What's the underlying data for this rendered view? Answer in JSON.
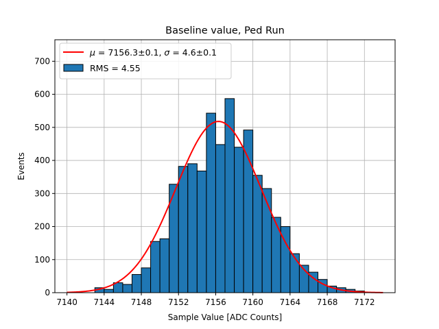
{
  "chart_data": {
    "type": "bar",
    "title": "Baseline value, Ped Run",
    "xlabel": "Sample Value [ADC Counts]",
    "ylabel": "Events",
    "xlim": [
      7138.7,
      7175.3
    ],
    "ylim": [
      0,
      765
    ],
    "xticks": [
      7140,
      7144,
      7148,
      7152,
      7156,
      7160,
      7164,
      7168,
      7172
    ],
    "yticks": [
      0,
      100,
      200,
      300,
      400,
      500,
      600,
      700
    ],
    "grid": true,
    "legend_position": "top-left",
    "bin_width": 1,
    "bin_edges_start": 7143,
    "histogram": {
      "name": "RMS = 4.55",
      "color": "#1f77b4",
      "edge_color": "#000000",
      "counts": [
        15,
        10,
        30,
        25,
        55,
        75,
        155,
        163,
        328,
        382,
        390,
        368,
        543,
        448,
        587,
        440,
        492,
        355,
        315,
        228,
        200,
        118,
        83,
        62,
        40,
        20,
        15,
        10,
        5
      ]
    },
    "fit": {
      "name": "$\\mu = 7156.3\\pm0.1$, $\\sigma = 4.6\\pm0.1$",
      "label_mu_symbol": "μ",
      "label_mu_value": " = 7156.3±0.1, ",
      "label_sigma_symbol": "σ",
      "label_sigma_value": " = 4.6±0.1",
      "type": "gaussian",
      "mu": 7156.3,
      "sigma": 4.6,
      "amplitude": 518,
      "x_range": [
        7140,
        7174
      ],
      "color": "#ff0000"
    }
  }
}
